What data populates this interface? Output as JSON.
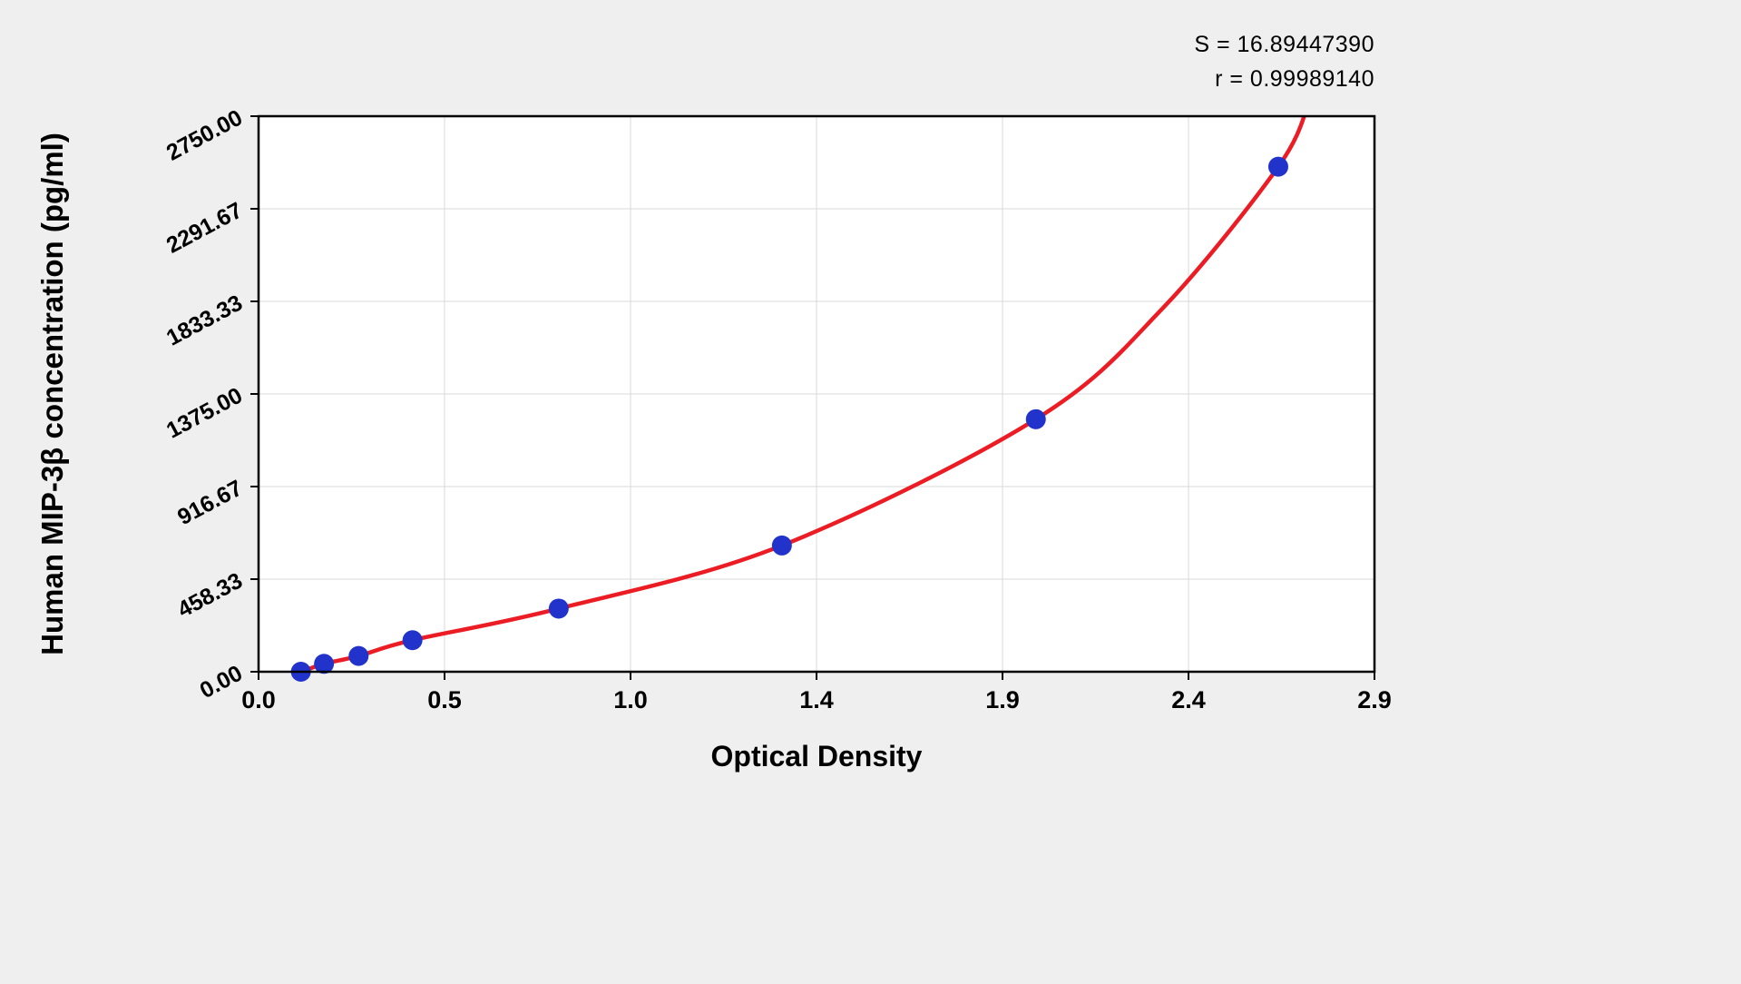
{
  "annotations": {
    "s_label": "S = 16.89447390",
    "r_label": "r = 0.99989140"
  },
  "chart_data": {
    "type": "scatter",
    "title": "",
    "xlabel": "Optical Density",
    "ylabel": "Human MIP-3β concentration (pg/ml)",
    "xlim": [
      0,
      2.9
    ],
    "ylim": [
      0,
      2750
    ],
    "grid": true,
    "x_ticks": {
      "values": [
        0,
        0.4833,
        0.9667,
        1.45,
        1.9333,
        2.4167,
        2.9
      ],
      "labels": [
        "0.0",
        "0.5",
        "1.0",
        "1.4",
        "1.9",
        "2.4",
        "2.9"
      ]
    },
    "y_ticks": {
      "values": [
        0,
        458.33,
        916.67,
        1375,
        1833.33,
        2291.67,
        2750
      ],
      "labels": [
        "0.00",
        "458.33",
        "916.67",
        "1375.00",
        "1833.33",
        "2291.67",
        "2750.00"
      ]
    },
    "points": {
      "x": [
        0.11,
        0.17,
        0.26,
        0.4,
        0.78,
        1.36,
        2.02,
        2.65
      ],
      "y": [
        0,
        39.06,
        78.13,
        156.25,
        312.5,
        625,
        1250,
        2500
      ]
    },
    "curve": [
      [
        0.05,
        -35
      ],
      [
        0.11,
        0
      ],
      [
        0.17,
        39.06
      ],
      [
        0.26,
        78.13
      ],
      [
        0.4,
        156.25
      ],
      [
        0.78,
        312.5
      ],
      [
        1.36,
        625
      ],
      [
        2.02,
        1250
      ],
      [
        2.35,
        1800
      ],
      [
        2.65,
        2500
      ],
      [
        2.73,
        2820
      ]
    ],
    "colors": {
      "point": "#2233cc",
      "curve": "#ec1c24",
      "grid": "#d9d9d9",
      "axis": "#000000",
      "plot_bg": "#ffffff"
    },
    "legend": null
  }
}
